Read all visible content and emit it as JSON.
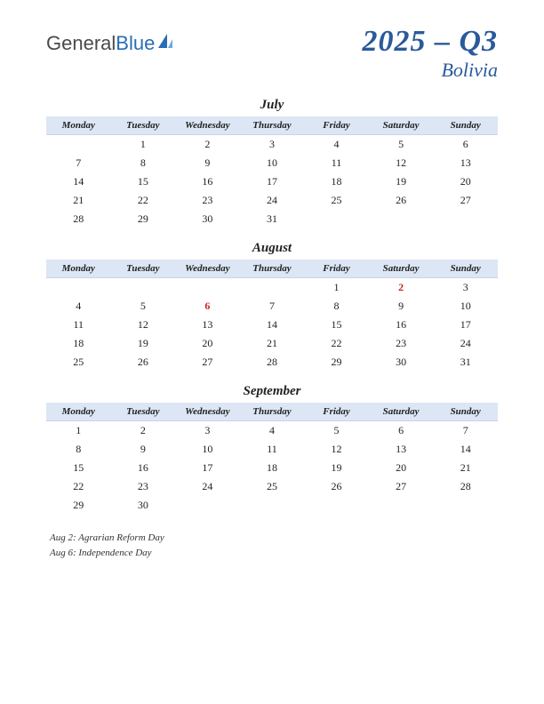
{
  "logo": {
    "part1": "General",
    "part2": "Blue"
  },
  "title": {
    "period": "2025 – Q3",
    "country": "Bolivia"
  },
  "colors": {
    "header_bg": "#dce6f4",
    "title_color": "#2a5a9a",
    "holiday_color": "#c62828",
    "text_color": "#222222"
  },
  "day_headers": [
    "Monday",
    "Tuesday",
    "Wednesday",
    "Thursday",
    "Friday",
    "Saturday",
    "Sunday"
  ],
  "months": [
    {
      "name": "July",
      "weeks": [
        [
          "",
          "1",
          "2",
          "3",
          "4",
          "5",
          "6"
        ],
        [
          "7",
          "8",
          "9",
          "10",
          "11",
          "12",
          "13"
        ],
        [
          "14",
          "15",
          "16",
          "17",
          "18",
          "19",
          "20"
        ],
        [
          "21",
          "22",
          "23",
          "24",
          "25",
          "26",
          "27"
        ],
        [
          "28",
          "29",
          "30",
          "31",
          "",
          "",
          ""
        ]
      ],
      "holidays": []
    },
    {
      "name": "August",
      "weeks": [
        [
          "",
          "",
          "",
          "",
          "1",
          "2",
          "3"
        ],
        [
          "4",
          "5",
          "6",
          "7",
          "8",
          "9",
          "10"
        ],
        [
          "11",
          "12",
          "13",
          "14",
          "15",
          "16",
          "17"
        ],
        [
          "18",
          "19",
          "20",
          "21",
          "22",
          "23",
          "24"
        ],
        [
          "25",
          "26",
          "27",
          "28",
          "29",
          "30",
          "31"
        ]
      ],
      "holidays": [
        "2",
        "6"
      ]
    },
    {
      "name": "September",
      "weeks": [
        [
          "1",
          "2",
          "3",
          "4",
          "5",
          "6",
          "7"
        ],
        [
          "8",
          "9",
          "10",
          "11",
          "12",
          "13",
          "14"
        ],
        [
          "15",
          "16",
          "17",
          "18",
          "19",
          "20",
          "21"
        ],
        [
          "22",
          "23",
          "24",
          "25",
          "26",
          "27",
          "28"
        ],
        [
          "29",
          "30",
          "",
          "",
          "",
          "",
          ""
        ]
      ],
      "holidays": []
    }
  ],
  "holiday_list": [
    "Aug 2: Agrarian Reform Day",
    "Aug 6: Independence Day"
  ]
}
